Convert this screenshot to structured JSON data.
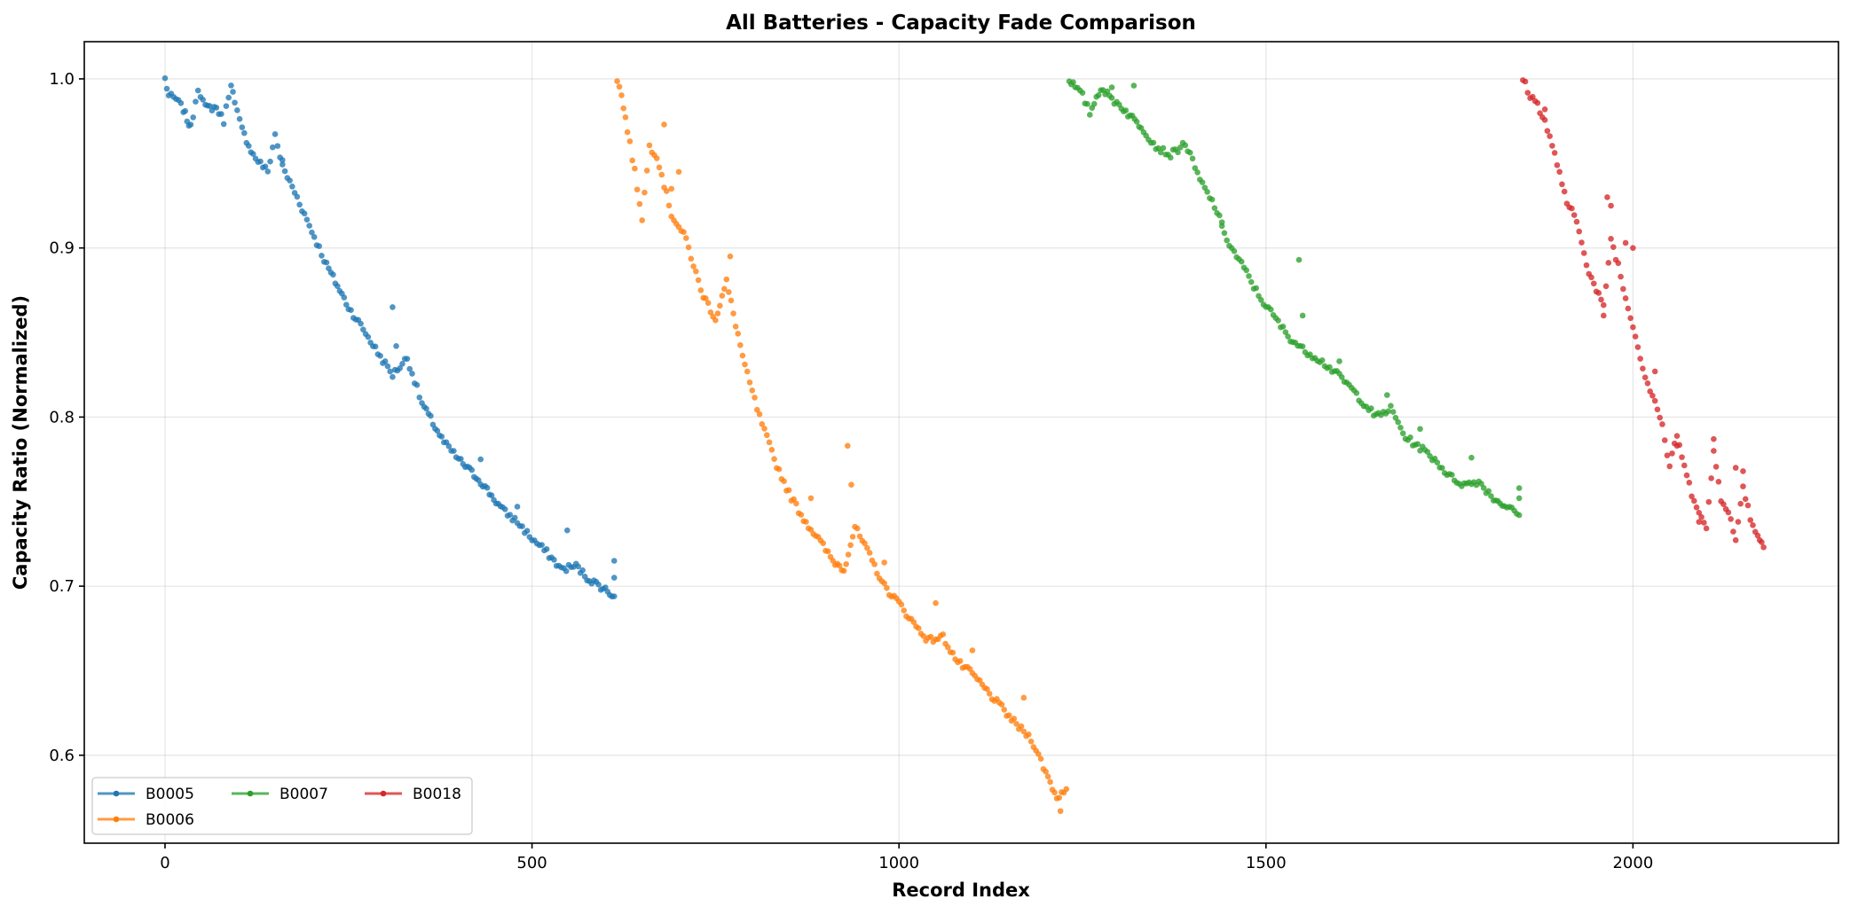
{
  "chart_data": {
    "type": "scatter",
    "title": "All Batteries - Capacity Fade Comparison",
    "xlabel": "Record Index",
    "ylabel": "Capacity Ratio (Normalized)",
    "xlim": [
      -110,
      2280
    ],
    "ylim": [
      0.548,
      1.022
    ],
    "xticks": [
      0,
      500,
      1000,
      1500,
      2000
    ],
    "xtick_labels": [
      "0",
      "500",
      "1000",
      "1500",
      "2000"
    ],
    "yticks": [
      0.6,
      0.7,
      0.8,
      0.9,
      1.0
    ],
    "ytick_labels": [
      "0.6",
      "0.7",
      "0.8",
      "0.9",
      "1.0"
    ],
    "grid": true,
    "legend_position": "bottom-left",
    "series": [
      {
        "name": "B0005",
        "color": "#1f77b4",
        "keypoints": [
          [
            0,
            1.0
          ],
          [
            5,
            0.99
          ],
          [
            15,
            0.988
          ],
          [
            25,
            0.982
          ],
          [
            30,
            0.976
          ],
          [
            35,
            0.971
          ],
          [
            45,
            0.995
          ],
          [
            55,
            0.983
          ],
          [
            70,
            0.983
          ],
          [
            80,
            0.975
          ],
          [
            90,
            0.998
          ],
          [
            95,
            0.985
          ],
          [
            105,
            0.97
          ],
          [
            120,
            0.955
          ],
          [
            140,
            0.945
          ],
          [
            150,
            0.967
          ],
          [
            160,
            0.948
          ],
          [
            180,
            0.93
          ],
          [
            200,
            0.91
          ],
          [
            220,
            0.89
          ],
          [
            250,
            0.865
          ],
          [
            270,
            0.852
          ],
          [
            290,
            0.838
          ],
          [
            310,
            0.825
          ],
          [
            330,
            0.835
          ],
          [
            350,
            0.808
          ],
          [
            380,
            0.785
          ],
          [
            400,
            0.775
          ],
          [
            430,
            0.762
          ],
          [
            460,
            0.745
          ],
          [
            480,
            0.738
          ],
          [
            500,
            0.728
          ],
          [
            520,
            0.72
          ],
          [
            540,
            0.71
          ],
          [
            560,
            0.712
          ],
          [
            575,
            0.705
          ],
          [
            600,
            0.698
          ],
          [
            612,
            0.694
          ]
        ],
        "extra": [
          [
            310,
            0.865
          ],
          [
            315,
            0.842
          ],
          [
            430,
            0.775
          ],
          [
            480,
            0.747
          ],
          [
            548,
            0.733
          ],
          [
            612,
            0.715
          ],
          [
            612,
            0.705
          ],
          [
            160,
            0.952
          ]
        ]
      },
      {
        "name": "B0006",
        "color": "#ff7f0e",
        "keypoints": [
          [
            616,
            1.0
          ],
          [
            622,
            0.99
          ],
          [
            630,
            0.97
          ],
          [
            640,
            0.945
          ],
          [
            650,
            0.918
          ],
          [
            660,
            0.96
          ],
          [
            670,
            0.955
          ],
          [
            690,
            0.92
          ],
          [
            710,
            0.905
          ],
          [
            730,
            0.875
          ],
          [
            750,
            0.858
          ],
          [
            765,
            0.88
          ],
          [
            790,
            0.83
          ],
          [
            810,
            0.8
          ],
          [
            830,
            0.775
          ],
          [
            850,
            0.755
          ],
          [
            870,
            0.74
          ],
          [
            890,
            0.728
          ],
          [
            910,
            0.715
          ],
          [
            925,
            0.71
          ],
          [
            940,
            0.735
          ],
          [
            960,
            0.718
          ],
          [
            980,
            0.7
          ],
          [
            1000,
            0.69
          ],
          [
            1020,
            0.678
          ],
          [
            1040,
            0.668
          ],
          [
            1060,
            0.67
          ],
          [
            1080,
            0.655
          ],
          [
            1100,
            0.648
          ],
          [
            1120,
            0.638
          ],
          [
            1140,
            0.628
          ],
          [
            1160,
            0.618
          ],
          [
            1180,
            0.61
          ],
          [
            1200,
            0.59
          ],
          [
            1215,
            0.575
          ],
          [
            1228,
            0.58
          ]
        ],
        "extra": [
          [
            930,
            0.783
          ],
          [
            935,
            0.76
          ],
          [
            690,
            0.935
          ],
          [
            700,
            0.945
          ],
          [
            680,
            0.973
          ],
          [
            770,
            0.895
          ],
          [
            1100,
            0.662
          ],
          [
            1170,
            0.634
          ],
          [
            1050,
            0.69
          ],
          [
            880,
            0.752
          ],
          [
            980,
            0.714
          ],
          [
            1220,
            0.567
          ]
        ]
      },
      {
        "name": "B0007",
        "color": "#2ca02c",
        "keypoints": [
          [
            1232,
            1.0
          ],
          [
            1240,
            0.995
          ],
          [
            1250,
            0.99
          ],
          [
            1260,
            0.98
          ],
          [
            1275,
            0.995
          ],
          [
            1290,
            0.988
          ],
          [
            1300,
            0.985
          ],
          [
            1315,
            0.978
          ],
          [
            1330,
            0.972
          ],
          [
            1350,
            0.96
          ],
          [
            1370,
            0.955
          ],
          [
            1390,
            0.962
          ],
          [
            1410,
            0.94
          ],
          [
            1430,
            0.925
          ],
          [
            1450,
            0.902
          ],
          [
            1470,
            0.888
          ],
          [
            1490,
            0.872
          ],
          [
            1510,
            0.86
          ],
          [
            1530,
            0.848
          ],
          [
            1550,
            0.84
          ],
          [
            1570,
            0.835
          ],
          [
            1590,
            0.828
          ],
          [
            1610,
            0.82
          ],
          [
            1630,
            0.81
          ],
          [
            1650,
            0.8
          ],
          [
            1670,
            0.805
          ],
          [
            1690,
            0.788
          ],
          [
            1710,
            0.782
          ],
          [
            1730,
            0.775
          ],
          [
            1750,
            0.765
          ],
          [
            1770,
            0.76
          ],
          [
            1790,
            0.762
          ],
          [
            1810,
            0.752
          ],
          [
            1825,
            0.748
          ],
          [
            1845,
            0.742
          ]
        ],
        "extra": [
          [
            1545,
            0.893
          ],
          [
            1550,
            0.86
          ],
          [
            1320,
            0.996
          ],
          [
            1290,
            0.995
          ],
          [
            1440,
            0.913
          ],
          [
            1780,
            0.776
          ],
          [
            1845,
            0.758
          ],
          [
            1845,
            0.752
          ],
          [
            1710,
            0.793
          ],
          [
            1600,
            0.833
          ],
          [
            1665,
            0.813
          ]
        ]
      },
      {
        "name": "B0018",
        "color": "#d62728",
        "keypoints": [
          [
            1850,
            1.0
          ],
          [
            1860,
            0.99
          ],
          [
            1870,
            0.985
          ],
          [
            1880,
            0.975
          ],
          [
            1890,
            0.96
          ],
          [
            1900,
            0.945
          ],
          [
            1910,
            0.925
          ],
          [
            1920,
            0.92
          ],
          [
            1930,
            0.905
          ],
          [
            1940,
            0.885
          ],
          [
            1950,
            0.875
          ],
          [
            1960,
            0.865
          ],
          [
            1970,
            0.905
          ],
          [
            1980,
            0.89
          ],
          [
            1990,
            0.87
          ],
          [
            2000,
            0.855
          ],
          [
            2010,
            0.835
          ],
          [
            2020,
            0.82
          ],
          [
            2030,
            0.81
          ],
          [
            2040,
            0.795
          ],
          [
            2050,
            0.77
          ],
          [
            2060,
            0.79
          ],
          [
            2070,
            0.77
          ],
          [
            2080,
            0.755
          ],
          [
            2090,
            0.745
          ],
          [
            2100,
            0.733
          ],
          [
            2110,
            0.78
          ],
          [
            2120,
            0.752
          ],
          [
            2130,
            0.745
          ],
          [
            2140,
            0.726
          ],
          [
            2150,
            0.76
          ],
          [
            2160,
            0.74
          ],
          [
            2170,
            0.73
          ],
          [
            2178,
            0.723
          ]
        ],
        "extra": [
          [
            1965,
            0.93
          ],
          [
            1970,
            0.925
          ],
          [
            1990,
            0.903
          ],
          [
            1960,
            0.86
          ],
          [
            2110,
            0.787
          ],
          [
            2140,
            0.77
          ],
          [
            2150,
            0.768
          ],
          [
            1880,
            0.982
          ],
          [
            2000,
            0.9
          ],
          [
            2030,
            0.827
          ],
          [
            2090,
            0.738
          ],
          [
            2060,
            0.783
          ]
        ]
      }
    ]
  }
}
